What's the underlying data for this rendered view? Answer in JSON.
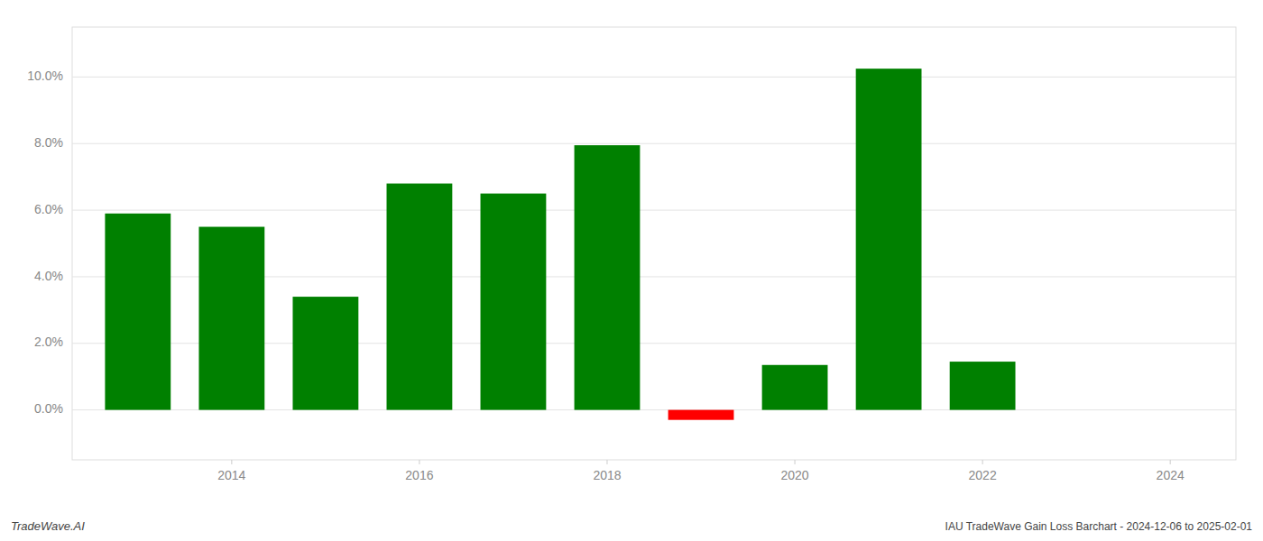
{
  "chart_data": {
    "type": "bar",
    "x": [
      2013,
      2014,
      2015,
      2016,
      2017,
      2018,
      2019,
      2020,
      2021,
      2022,
      2023
    ],
    "values": [
      0.059,
      0.055,
      0.034,
      0.068,
      0.065,
      0.0795,
      -0.003,
      0.0135,
      0.1025,
      0.0145,
      0.0
    ],
    "colors": [
      "#008000",
      "#008000",
      "#008000",
      "#008000",
      "#008000",
      "#008000",
      "#ff0000",
      "#008000",
      "#008000",
      "#008000",
      "#008000"
    ],
    "xlim": [
      2012.3,
      2024.7
    ],
    "xticks": [
      2014,
      2016,
      2018,
      2020,
      2022,
      2024
    ],
    "ylim": [
      -0.015,
      0.115
    ],
    "yticks": [
      {
        "value": 0.0,
        "label": "0.0%"
      },
      {
        "value": 0.02,
        "label": "2.0%"
      },
      {
        "value": 0.04,
        "label": "4.0%"
      },
      {
        "value": 0.06,
        "label": "6.0%"
      },
      {
        "value": 0.08,
        "label": "8.0%"
      },
      {
        "value": 0.1,
        "label": "10.0%"
      }
    ],
    "grid": true,
    "annotations": [
      "TradeWave.AI",
      "IAU TradeWave Gain Loss Barchart - 2024-12-06 to 2025-02-01"
    ]
  }
}
